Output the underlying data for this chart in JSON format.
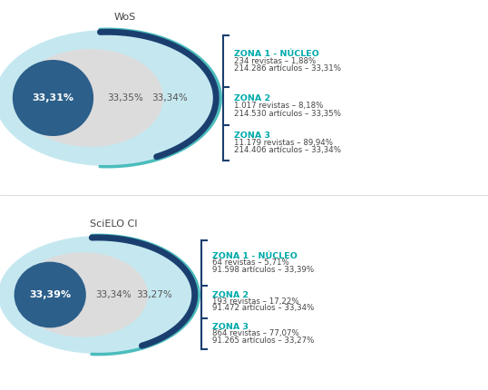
{
  "wos_label": "WoS",
  "scielo_label": "SciELO CI",
  "top_zones": [
    {
      "title": "ZONA 1 - NÚCLEO",
      "line1": "234 revistas – 1,88%",
      "line2": "214.286 artículos – 33,31%"
    },
    {
      "title": "ZONA 2",
      "line1": "1.017 revistas – 8,18%",
      "line2": "214.530 artículos – 33,35%"
    },
    {
      "title": "ZONA 3",
      "line1": "11.179 revistas – 89,94%",
      "line2": "214.406 artículos – 33,34%"
    }
  ],
  "bottom_zones": [
    {
      "title": "ZONA 1 - NÚCLEO",
      "line1": "64 revistas – 5,71%",
      "line2": "91.598 artículos – 33,39%"
    },
    {
      "title": "ZONA 2",
      "line1": "193 revistas – 17,22%",
      "line2": "91.472 artículos – 33,34%"
    },
    {
      "title": "ZONA 3",
      "line1": "864 revistas – 77,07%",
      "line2": "91.265 artículos – 33,27%"
    }
  ],
  "top_pcts": [
    "33,31%",
    "33,35%",
    "33,34%"
  ],
  "bottom_pcts": [
    "33,39%",
    "33,34%",
    "33,27%"
  ],
  "color_outer_ellipse": "#c5e8f0",
  "color_middle_ellipse": "#dcdcdc",
  "color_inner_ellipse": "#2c5f8a",
  "color_bracket_dark": "#1a3f6f",
  "color_bracket_teal": "#4bbcbc",
  "color_zone_title": "#00aaaa",
  "color_text": "#444444",
  "background_color": "#ffffff"
}
